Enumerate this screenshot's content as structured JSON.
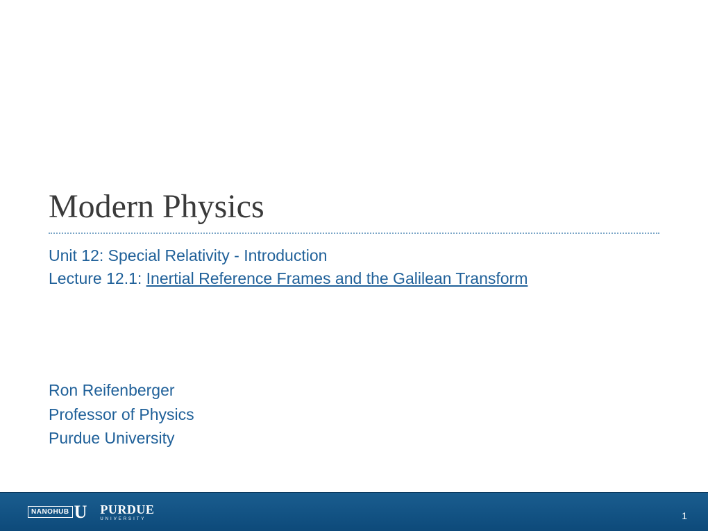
{
  "slide": {
    "title": "Modern Physics",
    "unit": "Unit 12: Special Relativity - Introduction",
    "lecture_label": "Lecture 12.1: ",
    "lecture_topic": "Inertial Reference Frames and the Galilean Transform",
    "author_name": "Ron Reifenberger",
    "author_title": "Professor of Physics",
    "author_affiliation": "Purdue University",
    "page_number": "1"
  },
  "footer": {
    "nanohub_text": "NANOHUB",
    "nanohub_u": "U",
    "purdue_main": "PURDUE",
    "purdue_sub": "UNIVERSITY"
  },
  "colors": {
    "title_color": "#3a3a3a",
    "text_color": "#1f6099",
    "divider_color": "#7aa5c7",
    "footer_gradient_top": "#1a5d8f",
    "footer_gradient_bottom": "#0d4a7a",
    "footer_text": "#ffffff",
    "background": "#ffffff"
  },
  "typography": {
    "title_font": "Georgia",
    "title_size": 48,
    "body_font": "Verdana",
    "body_size": 23
  }
}
